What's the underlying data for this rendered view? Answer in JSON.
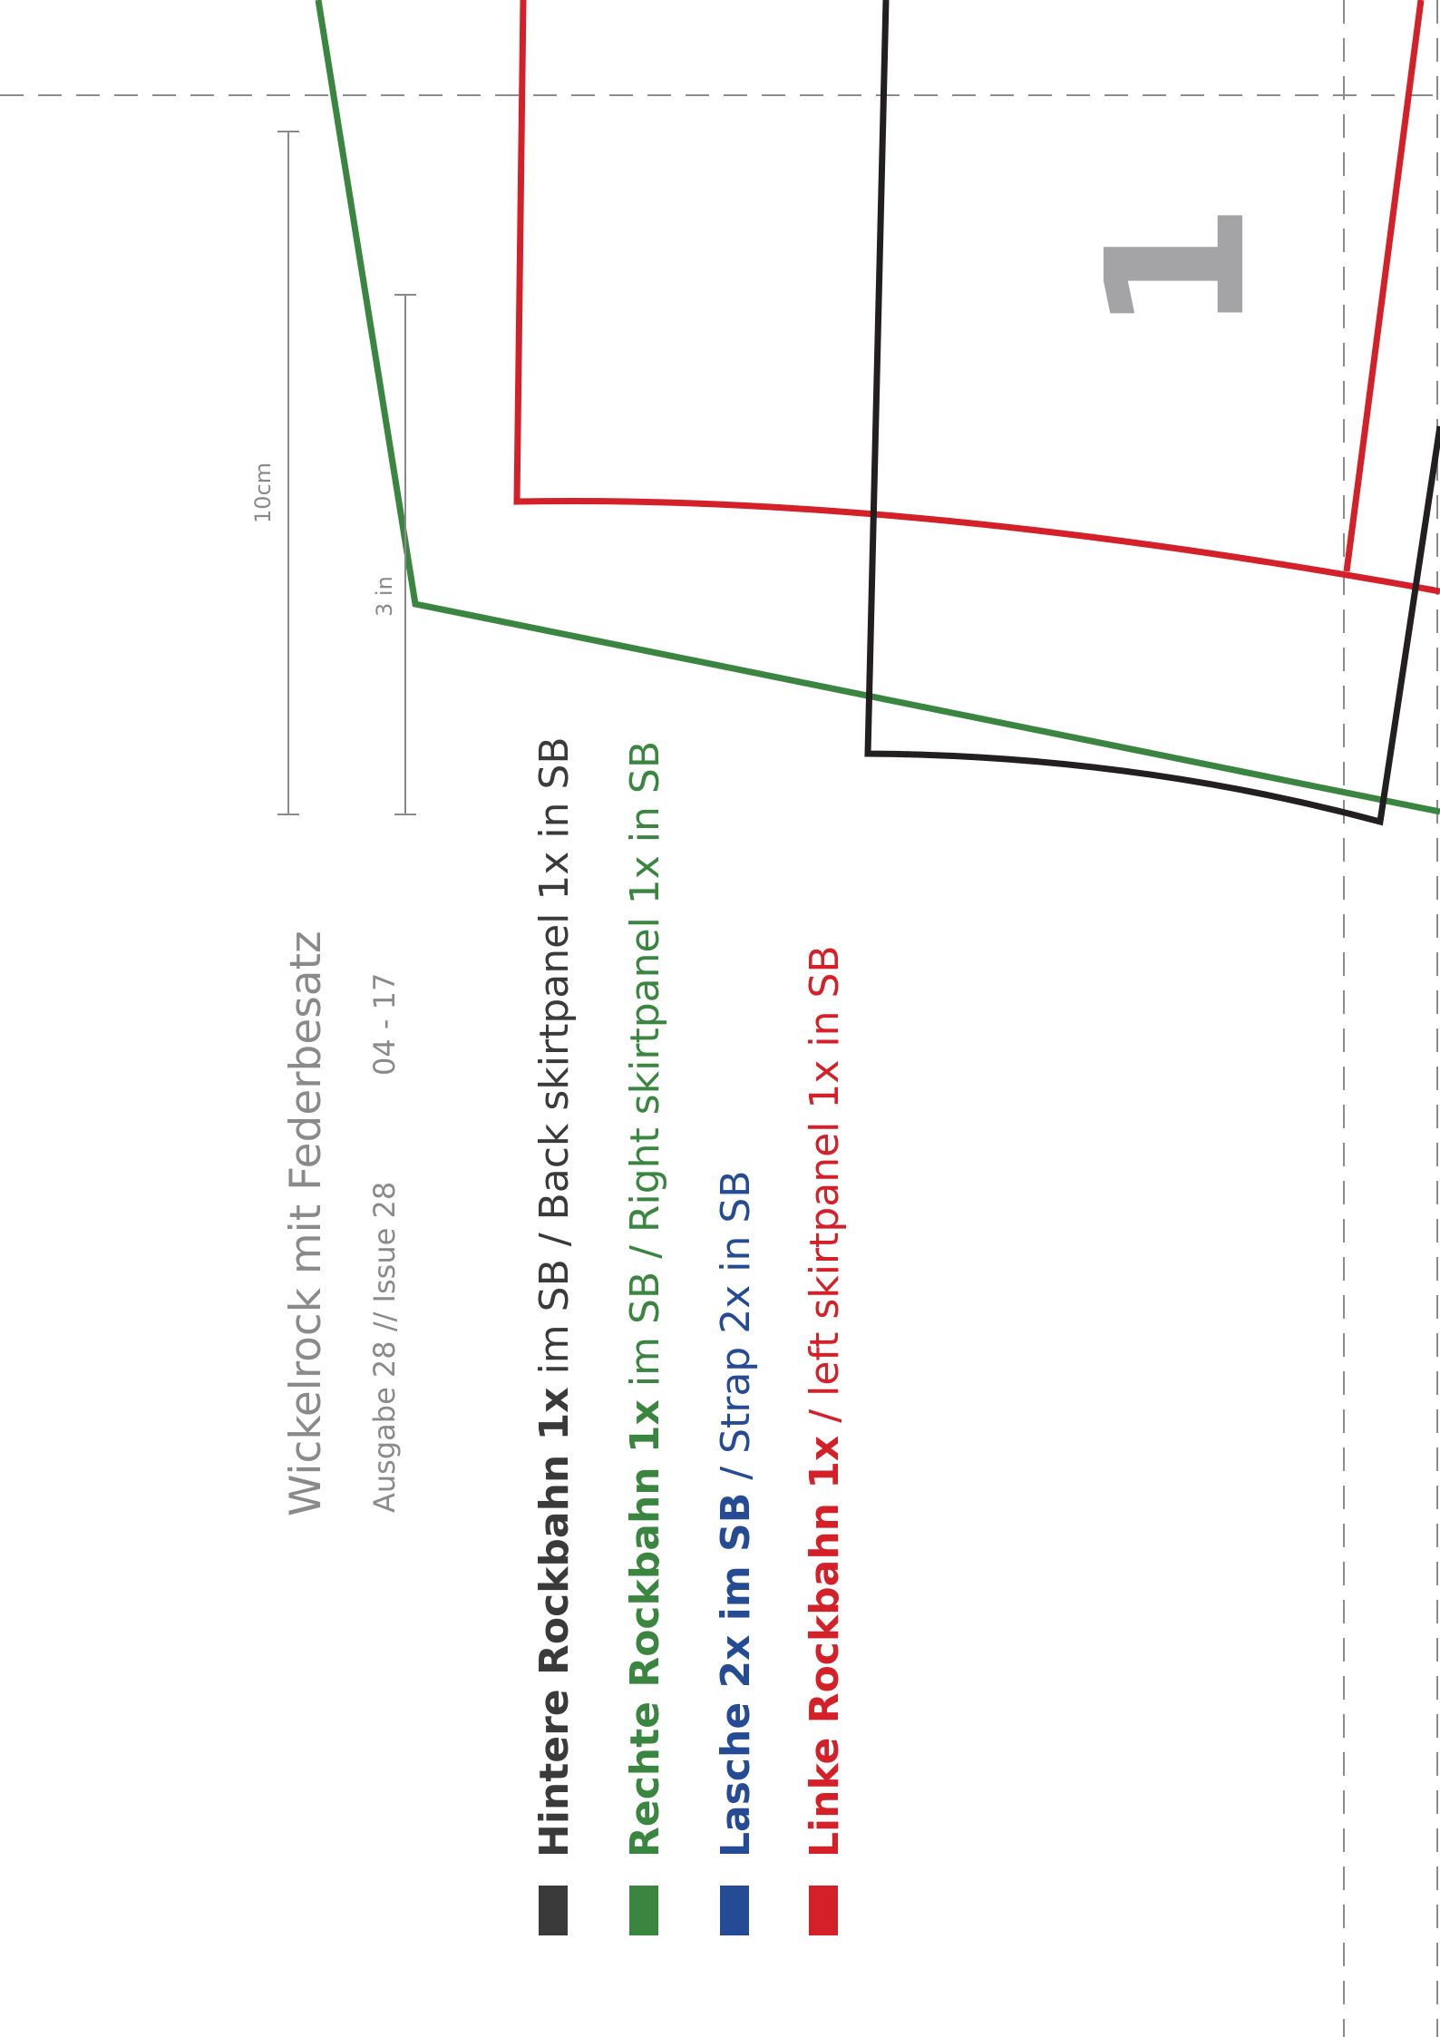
{
  "header": {
    "title": "Wickelrock mit Federbesatz",
    "issue": "Ausgabe 28 // Issue 28",
    "date": "04 - 17"
  },
  "scale": {
    "metric": "10cm",
    "imperial": "3 in"
  },
  "page_number": "1",
  "legend": [
    {
      "bold": "Hintere Rockbahn 1x",
      "regular": " im SB /  Back skirtpanel 1x in SB",
      "color": "#3a3a3a"
    },
    {
      "bold": "Rechte Rockbahn 1x",
      "regular": " im SB / Right skirtpanel 1x in SB",
      "color": "#3a8540"
    },
    {
      "bold": "Lasche 2x im SB",
      "regular": " / Strap 2x in SB",
      "color": "#244b93"
    },
    {
      "bold": "Linke Rockbahn 1x",
      "regular": " / left skirtpanel 1x in SB",
      "color": "#d42129"
    }
  ]
}
